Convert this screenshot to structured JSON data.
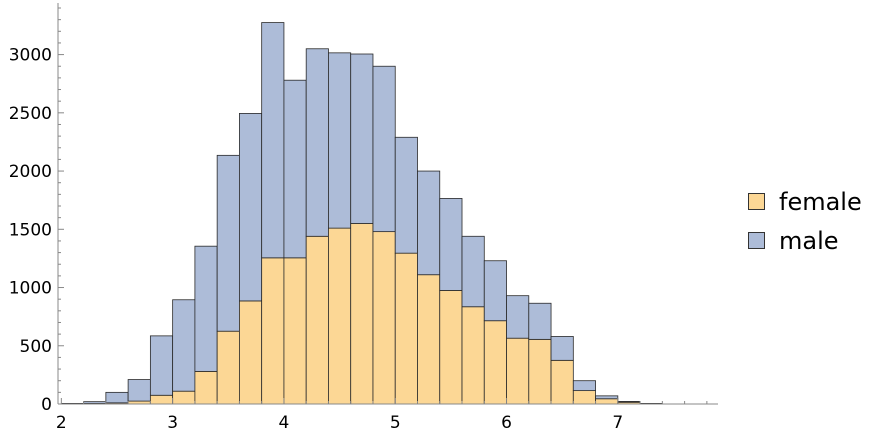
{
  "chart_data": {
    "type": "bar",
    "stacked": true,
    "bin_width": 0.2,
    "bin_starts": [
      2.0,
      2.2,
      2.4,
      2.6,
      2.8,
      3.0,
      3.2,
      3.4,
      3.6,
      3.8,
      4.0,
      4.2,
      4.4,
      4.6,
      4.8,
      5.0,
      5.2,
      5.4,
      5.6,
      5.8,
      6.0,
      6.2,
      6.4,
      6.6,
      6.8,
      7.0,
      7.2
    ],
    "series": [
      {
        "name": "female",
        "color": "#fcd795",
        "values": [
          2,
          5,
          10,
          25,
          75,
          110,
          280,
          625,
          885,
          1255,
          1255,
          1440,
          1510,
          1550,
          1480,
          1295,
          1110,
          975,
          835,
          715,
          565,
          555,
          375,
          115,
          45,
          15,
          3
        ]
      },
      {
        "name": "male",
        "color": "#adbcd8",
        "values": [
          3,
          15,
          90,
          185,
          510,
          785,
          1075,
          1510,
          1610,
          2020,
          1525,
          1610,
          1505,
          1455,
          1420,
          995,
          890,
          790,
          605,
          515,
          365,
          310,
          205,
          85,
          25,
          7,
          2
        ]
      }
    ],
    "xlim": [
      1.97,
      7.9
    ],
    "ylim": [
      0,
      3400
    ],
    "x_ticks": [
      "2",
      "3",
      "4",
      "5",
      "6",
      "7"
    ],
    "y_ticks": [
      "0",
      "500",
      "1000",
      "1500",
      "2000",
      "2500",
      "3000"
    ],
    "legend_position": "right",
    "grid": false
  }
}
